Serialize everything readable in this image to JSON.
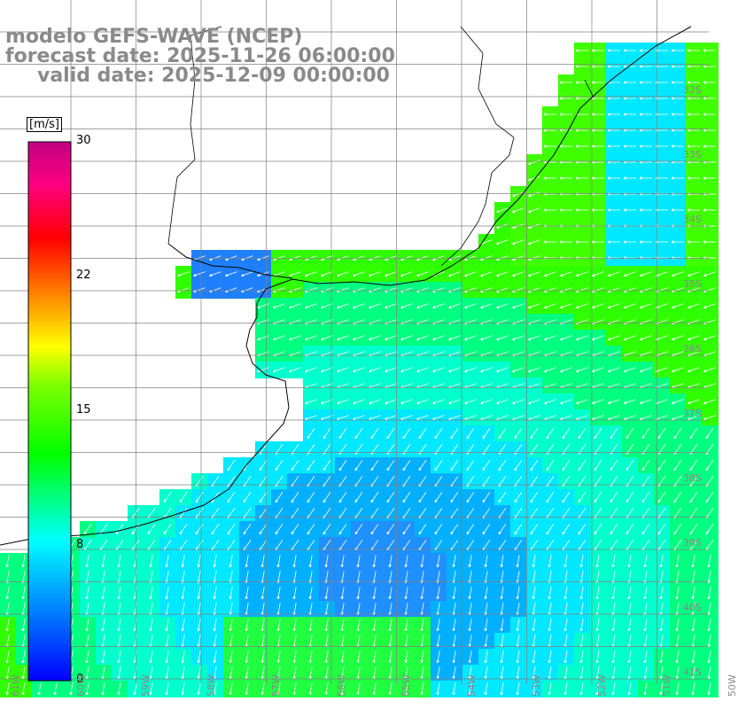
{
  "titles": {
    "model": "modelo GEFS-WAVE (NCEP)",
    "forecast": "forecast date: 2025-11-26 06:00:00",
    "valid": "valid date: 2025-12-09 00:00:00"
  },
  "colorbar": {
    "unit": "[m/s]",
    "ticks": [
      "30",
      "22",
      "15",
      "8",
      "0"
    ],
    "tick_values": [
      30,
      22,
      15,
      8,
      0
    ],
    "colors": [
      "#0000ff",
      "#0080ff",
      "#00ffff",
      "#00ff00",
      "#80ff00",
      "#ffff00",
      "#ff8000",
      "#ff0000",
      "#ff0080",
      "#c00080"
    ]
  },
  "lat_labels": [
    "32S",
    "33S",
    "34S",
    "35S",
    "36S",
    "37S",
    "38S",
    "39S",
    "40S",
    "41S"
  ],
  "lon_labels": [
    "61W",
    "60W",
    "59W",
    "58W",
    "57W",
    "56W",
    "55W",
    "54W",
    "53W",
    "52W",
    "51W",
    "50W"
  ],
  "colors": {
    "land": "#ffffff",
    "grid": "#808080",
    "coast": "#000000",
    "arrow": "#ffffff",
    "title": "#8a8a8a"
  }
}
